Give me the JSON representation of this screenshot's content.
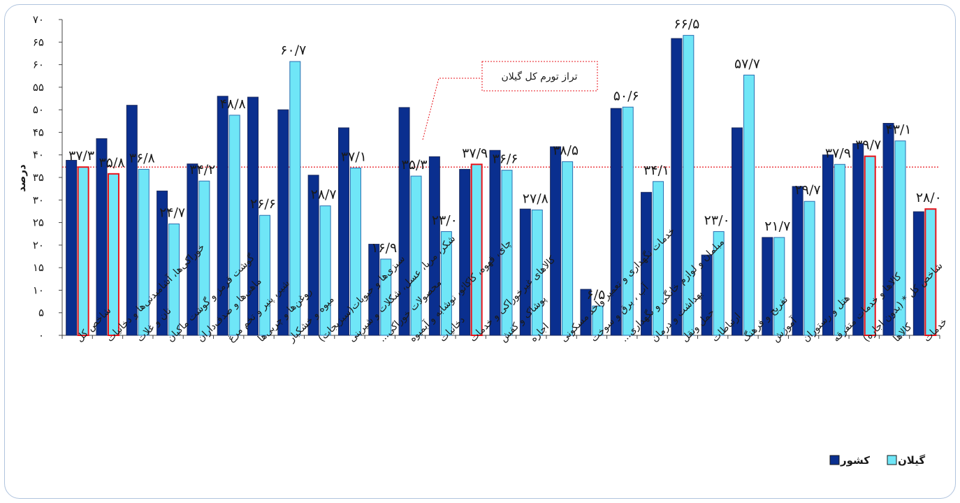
{
  "chart_data": {
    "type": "bar",
    "ylabel": "درصد",
    "ylim": [
      0,
      70
    ],
    "yticks": [
      "۰",
      "۵",
      "۱۰",
      "۱۵",
      "۲۰",
      "۲۵",
      "۳۰",
      "۳۵",
      "۴۰",
      "۴۵",
      "۵۰",
      "۵۵",
      "۶۰",
      "۶۵",
      "۷۰"
    ],
    "grid": false,
    "legend_position": "bottom-right",
    "categories": [
      "شاخص کل",
      "خوراکی‌ها، آشامیدنی‌ها و دخانیات",
      "نان و غلات",
      "گوشت قرمز و گوشت ماکیان",
      "ماهی‌ها و صدف‌داران",
      "شیر، پنیر و تخم مرغ",
      "روغن‌ها و چربی‌ها",
      "میوه و خشکبار",
      "سبزی‌ها و حبوبات(سبزیجات)",
      "شکر، مربا، عسل، شکلات و شیرینی",
      "محصولات خوراکی...",
      "چای، قهوه، کاکائو، نوشابه و آبمیوه",
      "دخانیات",
      "کالاهای غیرخوراکی و خدمات",
      "پوشاک و کفش",
      "اجاره",
      "خدمات نگهداری و تعمیر واحد مسکونی",
      "آب ، برق و سوخت",
      "مبلمان و لوازم خانگی و نگهداری...",
      "بهداشت و درمان",
      "حمل ونقل",
      "ارتباطات",
      "تفریح و فرهنگ",
      "آموزش",
      "هتل و رستوران",
      "کالاها و خدمات متفرقه",
      "شاخص کل * (بدون اجاره)",
      "کالاها",
      "خدمات"
    ],
    "series": [
      {
        "name": "کشور",
        "color": "#0a2f8f",
        "values": [
          38.8,
          43.6,
          51.0,
          32.0,
          38.0,
          53.0,
          52.8,
          50.0,
          35.5,
          46.0,
          20.2,
          50.5,
          39.6,
          36.8,
          41.0,
          28.0,
          41.8,
          10.2,
          50.3,
          31.7,
          65.8,
          17.8,
          46.0,
          21.7,
          33.0,
          40.0,
          42.5,
          47.0,
          27.4
        ]
      },
      {
        "name": "گیلان",
        "color": "#6fe6f7",
        "values": [
          37.3,
          35.8,
          36.8,
          24.7,
          34.2,
          48.8,
          26.6,
          60.7,
          28.7,
          37.1,
          16.9,
          35.3,
          23.0,
          37.9,
          36.6,
          27.8,
          38.5,
          6.5,
          50.6,
          34.1,
          66.5,
          23.0,
          57.7,
          21.7,
          29.7,
          37.9,
          39.7,
          43.1,
          28.0
        ]
      }
    ],
    "highlight_categories": [
      0,
      1,
      13,
      26,
      28
    ],
    "highlight_border_color": "#e8141c",
    "data_labels": [
      "۳۷/۳",
      "۳۵/۸",
      "۳۶/۸",
      "۲۴/۷",
      "۳۴/۲",
      "۴۸/۸",
      "۲۶/۶",
      "۶۰/۷",
      "۲۸/۷",
      "۳۷/۱",
      "۱۶/۹",
      "۳۵/۳",
      "۲۳/۰",
      "۳۷/۹",
      "۳۶/۶",
      "۲۷/۸",
      "۳۸/۵",
      "۶/۵",
      "۵۰/۶",
      "۳۴/۱",
      "۶۶/۵",
      "۲۳/۰",
      "۵۷/۷",
      "۲۱/۷",
      "۲۹/۷",
      "۳۷/۹",
      "۳۹/۷",
      "۴۳/۱",
      "۲۸/۰"
    ],
    "reference_line": {
      "value": 37.3,
      "label": "تراز تورم کل گیلان",
      "color": "#e8141c"
    }
  }
}
